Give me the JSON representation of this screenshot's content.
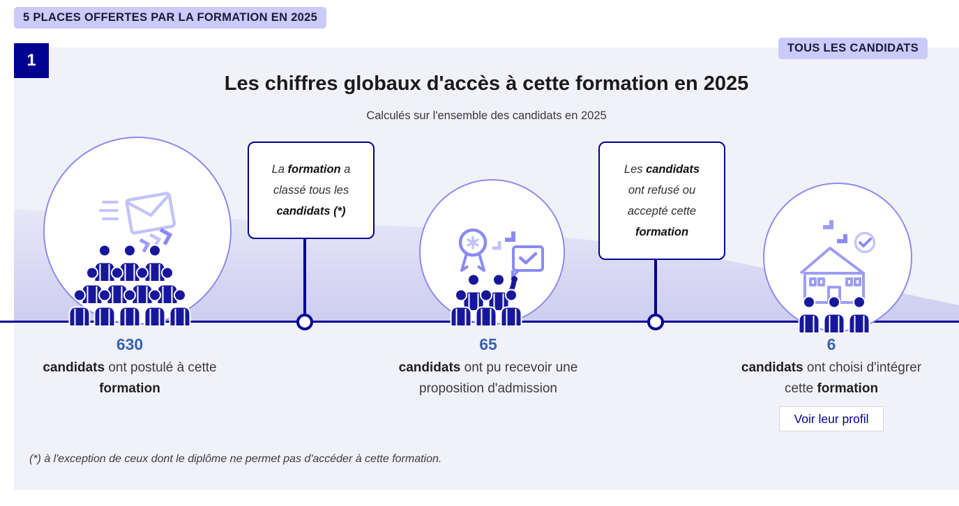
{
  "page": {
    "top_badge": "5 PLACES OFFERTES PAR LA FORMATION EN 2025",
    "right_badge": "TOUS LES CANDIDATS",
    "step_number": "1",
    "title": "Les chiffres globaux d'accès à cette formation en 2025",
    "subtitle": "Calculés sur l'ensemble des candidats en 2025",
    "footnote": "(*) à l'exception de ceux dont le diplôme ne permet pas d'accéder à cette formation."
  },
  "callouts": [
    {
      "lines": [
        [
          {
            "t": "La ",
            "b": false
          },
          {
            "t": "formation",
            "b": true
          },
          {
            "t": " a",
            "b": false
          }
        ],
        [
          {
            "t": "classé tous les",
            "b": false
          }
        ],
        [
          {
            "t": "candidats (*)",
            "b": true
          }
        ]
      ]
    },
    {
      "lines": [
        [
          {
            "t": "Les ",
            "b": false
          },
          {
            "t": "candidats",
            "b": true
          }
        ],
        [
          {
            "t": "ont refusé ou",
            "b": false
          }
        ],
        [
          {
            "t": "accepté cette",
            "b": false
          }
        ],
        [
          {
            "t": "formation",
            "b": true
          }
        ]
      ]
    }
  ],
  "steps": [
    {
      "value": "630",
      "icon": "envelope-send-icon",
      "caption_lines": [
        [
          {
            "t": "candidats",
            "b": true
          },
          {
            "t": " ont postulé à cette",
            "b": false
          }
        ],
        [
          {
            "t": "formation",
            "b": true
          }
        ]
      ]
    },
    {
      "value": "65",
      "icon": "award-proposal-icon",
      "caption_lines": [
        [
          {
            "t": "candidats",
            "b": true
          },
          {
            "t": " ont pu recevoir une",
            "b": false
          }
        ],
        [
          {
            "t": "proposition d'admission",
            "b": false
          }
        ]
      ]
    },
    {
      "value": "6",
      "icon": "house-check-icon",
      "caption_lines": [
        [
          {
            "t": "candidats",
            "b": true
          },
          {
            "t": " ont choisi d'intégrer",
            "b": false
          }
        ],
        [
          {
            "t": "cette ",
            "b": false
          },
          {
            "t": "formation",
            "b": true
          }
        ]
      ],
      "button_label": "Voir leur profil"
    }
  ],
  "colors": {
    "blue_france": "#000091",
    "badge_bg": "#cacafb",
    "panel_bg": "#f1f1fa",
    "number_blue": "#3763af",
    "people_navy": "#17179c",
    "icon_purple": "#8b8bf2",
    "icon_purple_light": "#c3c3fb"
  },
  "chart_data": {
    "type": "funnel",
    "title": "Les chiffres globaux d'accès à cette formation en 2025",
    "subtitle": "Calculés sur l'ensemble des candidats en 2025",
    "places_offered_2025": 5,
    "population": "Tous les candidats",
    "categories": [
      "candidats ont postulé à cette formation",
      "candidats ont pu recevoir une proposition d'admission",
      "candidats ont choisi d'intégrer cette formation"
    ],
    "values": [
      630,
      65,
      6
    ],
    "annotations": [
      "La formation a classé tous les candidats (*)",
      "Les candidats ont refusé ou accepté cette formation"
    ],
    "footnote": "(*) à l'exception de ceux dont le diplôme ne permet pas d'accéder à cette formation."
  }
}
